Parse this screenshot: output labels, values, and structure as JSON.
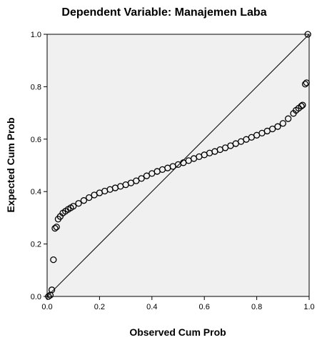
{
  "chart_data": {
    "type": "scatter",
    "title": "Dependent Variable: Manajemen Laba",
    "xlabel": "Observed Cum Prob",
    "ylabel": "Expected Cum Prob",
    "xlim": [
      0,
      1
    ],
    "ylim": [
      0,
      1
    ],
    "x_ticks": [
      "0.0",
      "0.2",
      "0.4",
      "0.6",
      "0.8",
      "1.0"
    ],
    "y_ticks": [
      "0.0",
      "0.2",
      "0.4",
      "0.6",
      "0.8",
      "1.0"
    ],
    "reference_line": {
      "x": [
        0,
        1
      ],
      "y": [
        0,
        1
      ]
    },
    "grid": false,
    "plot_background": "#f0f0f0",
    "marker": "hollow-circle",
    "series": [
      {
        "points": [
          [
            0.005,
            0.0
          ],
          [
            0.012,
            0.005
          ],
          [
            0.018,
            0.025
          ],
          [
            0.024,
            0.14
          ],
          [
            0.03,
            0.26
          ],
          [
            0.036,
            0.265
          ],
          [
            0.042,
            0.295
          ],
          [
            0.05,
            0.305
          ],
          [
            0.06,
            0.318
          ],
          [
            0.07,
            0.325
          ],
          [
            0.08,
            0.332
          ],
          [
            0.09,
            0.338
          ],
          [
            0.1,
            0.344
          ],
          [
            0.12,
            0.355
          ],
          [
            0.14,
            0.366
          ],
          [
            0.16,
            0.377
          ],
          [
            0.18,
            0.387
          ],
          [
            0.2,
            0.395
          ],
          [
            0.22,
            0.402
          ],
          [
            0.24,
            0.408
          ],
          [
            0.26,
            0.414
          ],
          [
            0.28,
            0.42
          ],
          [
            0.3,
            0.426
          ],
          [
            0.32,
            0.433
          ],
          [
            0.34,
            0.441
          ],
          [
            0.36,
            0.45
          ],
          [
            0.38,
            0.46
          ],
          [
            0.4,
            0.469
          ],
          [
            0.42,
            0.477
          ],
          [
            0.44,
            0.484
          ],
          [
            0.46,
            0.49
          ],
          [
            0.48,
            0.496
          ],
          [
            0.5,
            0.503
          ],
          [
            0.52,
            0.51
          ],
          [
            0.54,
            0.518
          ],
          [
            0.56,
            0.526
          ],
          [
            0.58,
            0.533
          ],
          [
            0.6,
            0.54
          ],
          [
            0.62,
            0.547
          ],
          [
            0.64,
            0.553
          ],
          [
            0.66,
            0.56
          ],
          [
            0.68,
            0.567
          ],
          [
            0.7,
            0.575
          ],
          [
            0.72,
            0.583
          ],
          [
            0.74,
            0.591
          ],
          [
            0.76,
            0.599
          ],
          [
            0.78,
            0.607
          ],
          [
            0.8,
            0.615
          ],
          [
            0.82,
            0.623
          ],
          [
            0.84,
            0.631
          ],
          [
            0.86,
            0.639
          ],
          [
            0.88,
            0.648
          ],
          [
            0.9,
            0.66
          ],
          [
            0.92,
            0.678
          ],
          [
            0.94,
            0.698
          ],
          [
            0.95,
            0.71
          ],
          [
            0.96,
            0.718
          ],
          [
            0.97,
            0.726
          ],
          [
            0.975,
            0.73
          ],
          [
            0.985,
            0.81
          ],
          [
            0.99,
            0.815
          ],
          [
            0.995,
            1.0
          ]
        ]
      }
    ]
  }
}
